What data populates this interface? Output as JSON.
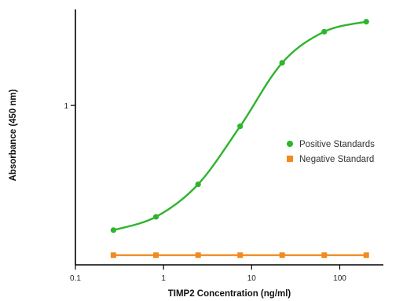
{
  "chart_data": {
    "type": "line",
    "xlabel": "TIMP2 Concentration (ng/ml)",
    "ylabel": "Absorbance (450 nm)",
    "x_scale": "log",
    "y_scale": "log",
    "xlim": [
      0.1,
      300
    ],
    "ylim": [
      0.1,
      4
    ],
    "x_ticks": [
      {
        "value": 0.1,
        "label": "0.1"
      },
      {
        "value": 1,
        "label": "1"
      },
      {
        "value": 10,
        "label": "10"
      },
      {
        "value": 100,
        "label": "100"
      }
    ],
    "y_ticks": [
      {
        "value": 1,
        "label": "1"
      }
    ],
    "legend_position": "right",
    "grid": false,
    "series": [
      {
        "name": "Positive Standards",
        "color": "#2db52d",
        "marker": "circle",
        "x": [
          0.27,
          0.82,
          2.47,
          7.4,
          22.2,
          66.7,
          200
        ],
        "y": [
          0.165,
          0.2,
          0.32,
          0.74,
          1.85,
          2.9,
          3.35
        ]
      },
      {
        "name": "Negative Standard",
        "color": "#f28a1e",
        "marker": "square",
        "x": [
          0.27,
          0.82,
          2.47,
          7.4,
          22.2,
          66.7,
          200
        ],
        "y": [
          0.115,
          0.115,
          0.115,
          0.115,
          0.115,
          0.115,
          0.115
        ]
      }
    ]
  }
}
